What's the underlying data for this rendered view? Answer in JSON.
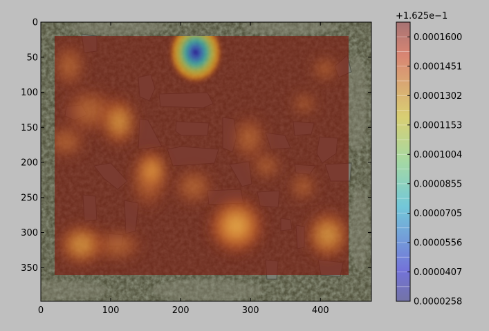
{
  "chart_data": {
    "type": "heatmap",
    "title": "",
    "xlabel": "",
    "ylabel": "",
    "xlim": [
      0,
      473
    ],
    "ylim": [
      398,
      0
    ],
    "y_inverted": true,
    "x_ticks": [
      "0",
      "100",
      "200",
      "300",
      "400"
    ],
    "y_ticks": [
      "0",
      "50",
      "100",
      "150",
      "200",
      "250",
      "300",
      "350"
    ],
    "colormap": "jet",
    "overlay_alpha": 0.4,
    "background": "aerial ground photo with grey stone slabs",
    "colorbar": {
      "offset_label": "+1.625e−1",
      "min": 2.58e-05,
      "max": 0.0001675,
      "tick_labels": [
        "0.0000258",
        "0.0000407",
        "0.0000556",
        "0.0000705",
        "0.0000855",
        "0.0001004",
        "0.0001153",
        "0.0001302",
        "0.0001451",
        "0.0001600"
      ],
      "levels": 19
    },
    "heat_region": {
      "x": [
        20,
        440
      ],
      "y": [
        20,
        363
      ],
      "baseline_level": "max"
    },
    "features": [
      {
        "kind": "minimum",
        "x": 220,
        "y": 40,
        "label": "blue low spot"
      },
      {
        "kind": "elevated",
        "x": 280,
        "y": 300
      },
      {
        "kind": "elevated",
        "x": 410,
        "y": 310
      },
      {
        "kind": "elevated",
        "x": 60,
        "y": 325
      },
      {
        "kind": "elevated",
        "x": 115,
        "y": 140
      }
    ]
  },
  "colors": {
    "figure_bg": "#bfbfbf",
    "frame": "#000000",
    "ground_dark": "#3c3f32",
    "ground_mid": "#6b6c55",
    "stone": "#7a7d72",
    "overlay_edge": "#c77d6a",
    "heat_red": "#7a1f14",
    "heat_orange": "#b65a2c"
  }
}
